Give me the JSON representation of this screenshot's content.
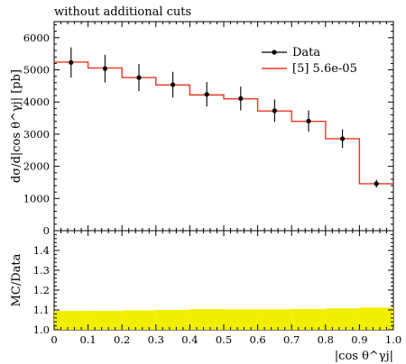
{
  "title": "without additional cuts",
  "chart_data": [
    {
      "type": "line",
      "panel": "main",
      "ylabel": "dσ/d|cos θ^γj| [pb]",
      "xlim": [
        0,
        1
      ],
      "ylim": [
        0,
        6500
      ],
      "yticks": [
        0,
        1000,
        2000,
        3000,
        4000,
        5000,
        6000
      ],
      "bin_edges": [
        0,
        0.1,
        0.2,
        0.3,
        0.4,
        0.5,
        0.6,
        0.7,
        0.8,
        0.9,
        1.0
      ],
      "series": [
        {
          "name": "Data",
          "style": "points-with-errorbars",
          "color": "#000000",
          "x": [
            0.05,
            0.15,
            0.25,
            0.35,
            0.45,
            0.55,
            0.65,
            0.75,
            0.85,
            0.95
          ],
          "values": [
            5230,
            5040,
            4760,
            4540,
            4240,
            4110,
            3730,
            3410,
            2860,
            1460
          ],
          "errors": [
            470,
            430,
            420,
            400,
            380,
            370,
            350,
            330,
            290,
            120
          ]
        },
        {
          "name": "[5] 5.6e-05",
          "style": "histogram-step",
          "color": "#e8361e",
          "values": [
            5240,
            5060,
            4760,
            4530,
            4220,
            4100,
            3720,
            3400,
            2860,
            1460
          ]
        }
      ],
      "legend": {
        "placement": "top-right"
      }
    },
    {
      "type": "area",
      "panel": "ratio",
      "ylabel": "MC/Data",
      "xlabel": "|cos θ^γj|",
      "xlim": [
        0,
        1
      ],
      "ylim": [
        1.0,
        1.5
      ],
      "yticks": [
        1.0,
        1.1,
        1.2,
        1.3,
        1.4
      ],
      "xticks": [
        0,
        0.1,
        0.2,
        0.3,
        0.4,
        0.5,
        0.6,
        0.7,
        0.8,
        0.9,
        1.0
      ],
      "series": [
        {
          "name": "",
          "color": "#f2ee00",
          "x": [
            0.05,
            0.15,
            0.25,
            0.35,
            0.45,
            0.55,
            0.65,
            0.75,
            0.85,
            0.95
          ],
          "upper": [
            1.095,
            1.095,
            1.098,
            1.1,
            1.104,
            1.103,
            1.103,
            1.105,
            1.108,
            1.112
          ],
          "lower": [
            1.0,
            1.0,
            1.0,
            1.0,
            1.0,
            1.0,
            1.0,
            1.0,
            1.0,
            1.0
          ]
        }
      ]
    }
  ]
}
